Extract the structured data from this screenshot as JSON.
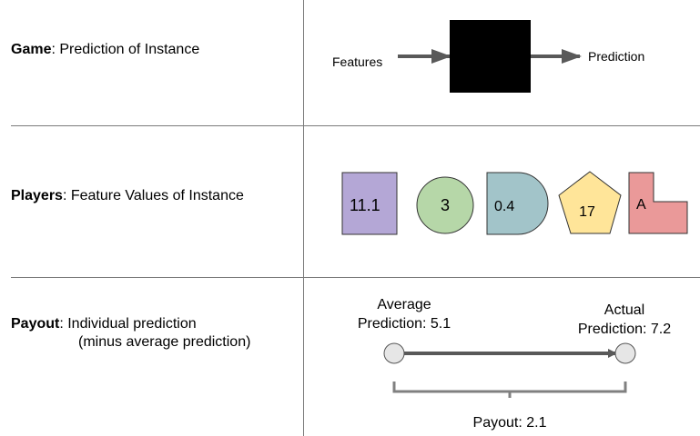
{
  "game": {
    "label_bold": "Game",
    "label_rest": ": Prediction of Instance",
    "input_label": "Features",
    "output_label": "Prediction"
  },
  "players": {
    "label_bold": "Players",
    "label_rest": ": Feature Values of Instance",
    "shapes": [
      {
        "shape": "square",
        "value": "11.1",
        "color": "#b4a7d6"
      },
      {
        "shape": "circle",
        "value": "3",
        "color": "#b6d7a8"
      },
      {
        "shape": "d-shape",
        "value": "0.4",
        "color": "#a2c4c9"
      },
      {
        "shape": "pentagon",
        "value": "17",
        "color": "#ffe599"
      },
      {
        "shape": "l-shape",
        "value": "A",
        "color": "#ea9999"
      }
    ]
  },
  "payout": {
    "label_bold": "Payout",
    "label_rest": ": Individual prediction",
    "label_line2": "(minus average prediction)",
    "average_line1": "Average",
    "average_line2": "Prediction: 5.1",
    "actual_line1": "Actual",
    "actual_line2": "Prediction: 7.2",
    "payout_text": "Payout: 2.1"
  }
}
